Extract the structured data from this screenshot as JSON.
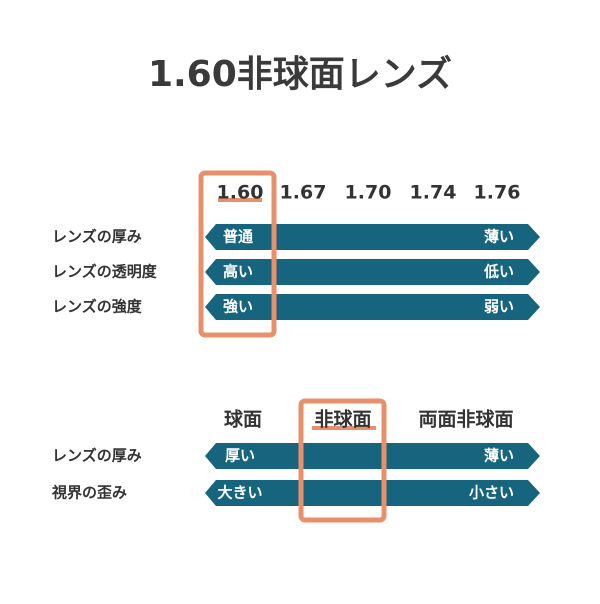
{
  "title": "1.60非球面レンズ",
  "refractive_index": {
    "columns": [
      "1.60",
      "1.67",
      "1.70",
      "1.74",
      "1.76"
    ],
    "rows": [
      {
        "label": "レンズの厚み",
        "left": "普通",
        "right": "薄い"
      },
      {
        "label": "レンズの透明度",
        "left": "高い",
        "right": "低い"
      },
      {
        "label": "レンズの強度",
        "left": "強い",
        "right": "弱い"
      }
    ]
  },
  "design": {
    "columns": [
      "球面",
      "非球面",
      "両面非球面"
    ],
    "rows": [
      {
        "label": "レンズの厚み",
        "left": "厚い",
        "right": "薄い"
      },
      {
        "label": "視界の歪み",
        "left": "大きい",
        "right": "小さい"
      }
    ]
  }
}
